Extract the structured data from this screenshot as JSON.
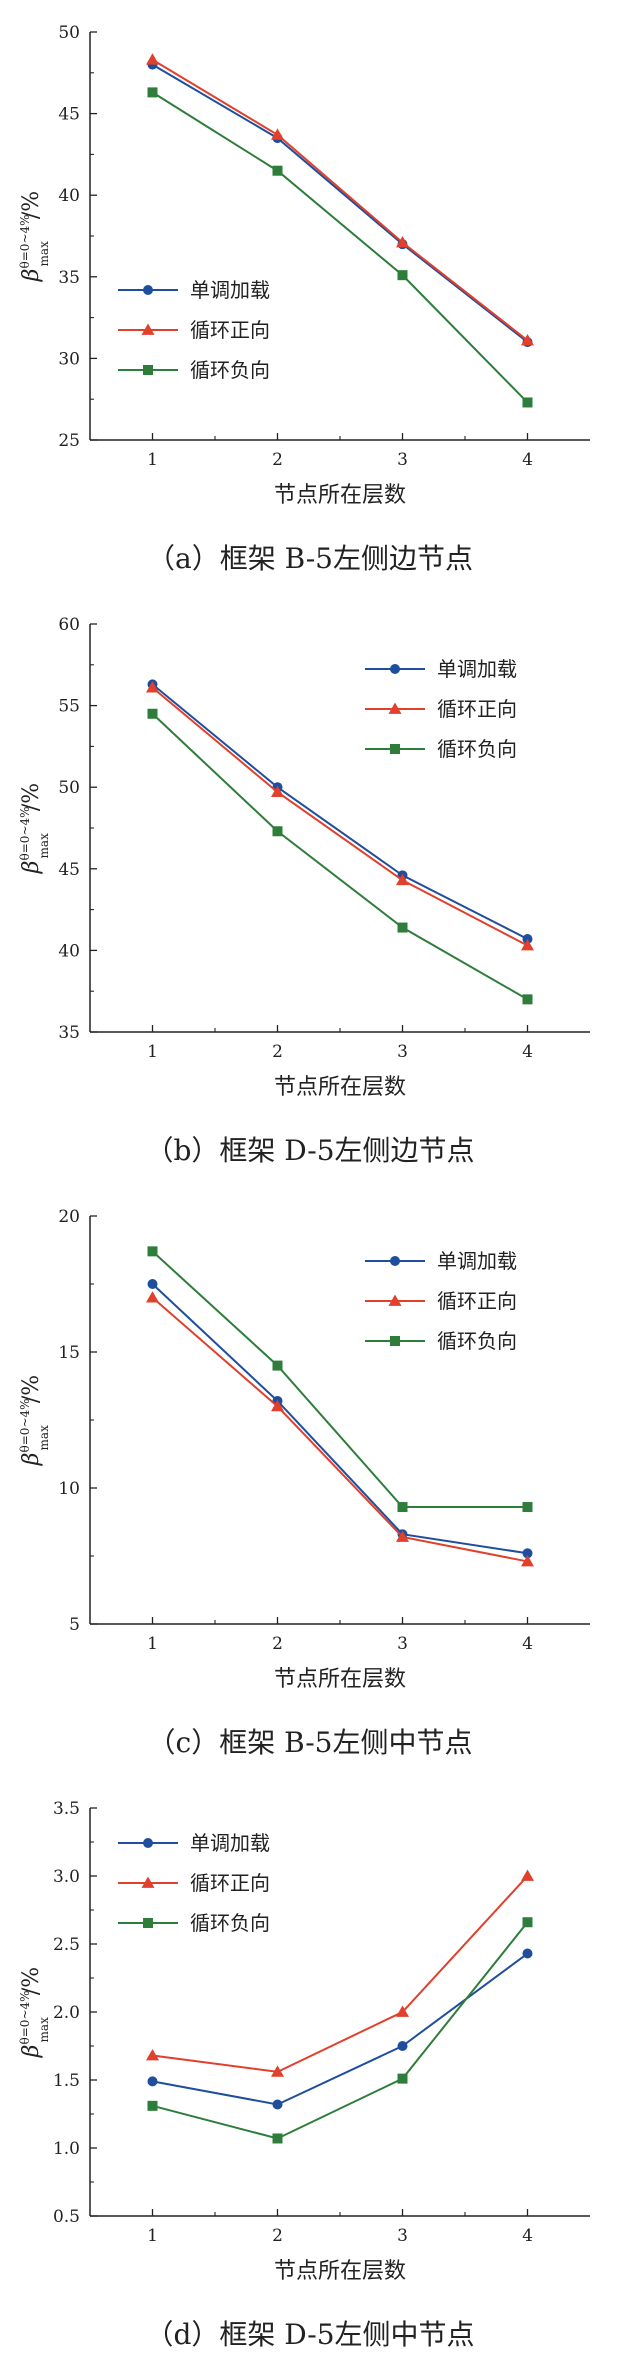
{
  "colors": {
    "series1": "#1f4e9c",
    "series2": "#e0402c",
    "series3": "#2e7d3b"
  },
  "y_label_main": "β",
  "y_label_sup": "θ=0~4%",
  "y_label_sub": "max",
  "y_label_tail": "/%",
  "chart_data": [
    {
      "type": "line",
      "caption": "（a）框架 B-5左侧边节点",
      "xlabel": "节点所在层数",
      "x": [
        1,
        2,
        3,
        4
      ],
      "ylim": [
        25,
        50
      ],
      "yticks": [
        25,
        30,
        35,
        40,
        45,
        50
      ],
      "legend_position": "left",
      "series": [
        {
          "name": "单调加载",
          "marker": "circle",
          "values": [
            48.0,
            43.5,
            37.0,
            31.0
          ]
        },
        {
          "name": "循环正向",
          "marker": "triangle",
          "values": [
            48.3,
            43.7,
            37.1,
            31.1
          ]
        },
        {
          "name": "循环负向",
          "marker": "square",
          "values": [
            46.3,
            41.5,
            35.1,
            27.3
          ]
        }
      ]
    },
    {
      "type": "line",
      "caption": "（b）框架 D-5左侧边节点",
      "xlabel": "节点所在层数",
      "x": [
        1,
        2,
        3,
        4
      ],
      "ylim": [
        35,
        60
      ],
      "yticks": [
        35,
        40,
        45,
        50,
        55,
        60
      ],
      "legend_position": "top-right",
      "series": [
        {
          "name": "单调加载",
          "marker": "circle",
          "values": [
            56.3,
            50.0,
            44.6,
            40.7
          ]
        },
        {
          "name": "循环正向",
          "marker": "triangle",
          "values": [
            56.1,
            49.7,
            44.3,
            40.3
          ]
        },
        {
          "name": "循环负向",
          "marker": "square",
          "values": [
            54.5,
            47.3,
            41.4,
            37.0
          ]
        }
      ]
    },
    {
      "type": "line",
      "caption": "（c）框架 B-5左侧中节点",
      "xlabel": "节点所在层数",
      "x": [
        1,
        2,
        3,
        4
      ],
      "ylim": [
        5,
        20
      ],
      "yticks": [
        5,
        10,
        15,
        20
      ],
      "legend_position": "top-right",
      "series": [
        {
          "name": "单调加载",
          "marker": "circle",
          "values": [
            17.5,
            13.2,
            8.3,
            7.6
          ]
        },
        {
          "name": "循环正向",
          "marker": "triangle",
          "values": [
            17.0,
            13.0,
            8.2,
            7.3
          ]
        },
        {
          "name": "循环负向",
          "marker": "square",
          "values": [
            18.7,
            14.5,
            9.3,
            9.3
          ]
        }
      ]
    },
    {
      "type": "line",
      "caption": "（d）框架 D-5左侧中节点",
      "xlabel": "节点所在层数",
      "x": [
        1,
        2,
        3,
        4
      ],
      "ylim": [
        0.5,
        3.5
      ],
      "yticks": [
        0.5,
        1.0,
        1.5,
        2.0,
        2.5,
        3.0,
        3.5
      ],
      "legend_position": "top-left",
      "series": [
        {
          "name": "单调加载",
          "marker": "circle",
          "values": [
            1.49,
            1.32,
            1.75,
            2.43
          ]
        },
        {
          "name": "循环正向",
          "marker": "triangle",
          "values": [
            1.68,
            1.56,
            2.0,
            3.0
          ]
        },
        {
          "name": "循环负向",
          "marker": "square",
          "values": [
            1.31,
            1.07,
            1.51,
            2.66
          ]
        }
      ]
    }
  ]
}
